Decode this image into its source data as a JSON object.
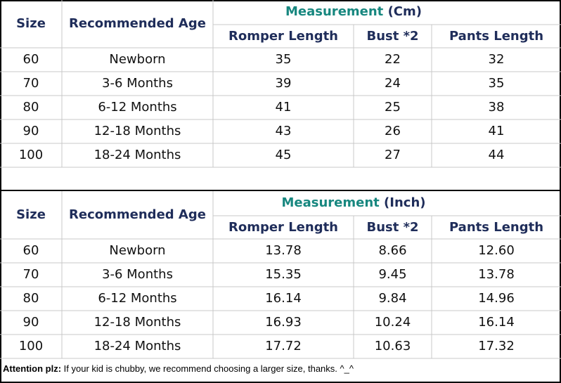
{
  "tables": [
    {
      "measurement_label": "Measurement",
      "unit": "(Cm)",
      "headers": [
        "Size",
        "Recommended Age",
        "Romper Length",
        "Bust *2",
        "Pants Length"
      ],
      "rows": [
        [
          "60",
          "Newborn",
          "35",
          "22",
          "32"
        ],
        [
          "70",
          "3-6 Months",
          "39",
          "24",
          "35"
        ],
        [
          "80",
          "6-12 Months",
          "41",
          "25",
          "38"
        ],
        [
          "90",
          "12-18 Months",
          "43",
          "26",
          "41"
        ],
        [
          "100",
          "18-24 Months",
          "45",
          "27",
          "44"
        ]
      ]
    },
    {
      "measurement_label": "Measurement",
      "unit": "(Inch)",
      "headers": [
        "Size",
        "Recommended Age",
        "Romper Length",
        "Bust *2",
        "Pants Length"
      ],
      "rows": [
        [
          "60",
          "Newborn",
          "13.78",
          "8.66",
          "12.60"
        ],
        [
          "70",
          "3-6 Months",
          "15.35",
          "9.45",
          "13.78"
        ],
        [
          "80",
          "6-12 Months",
          "16.14",
          "9.84",
          "14.96"
        ],
        [
          "90",
          "12-18 Months",
          "16.93",
          "10.24",
          "16.14"
        ],
        [
          "100",
          "18-24 Months",
          "17.72",
          "10.63",
          "17.32"
        ]
      ]
    }
  ],
  "note": {
    "label": "Attention plz:",
    "text": "If your kid is chubby, we recommend choosing a larger size, thanks. ^_^"
  }
}
